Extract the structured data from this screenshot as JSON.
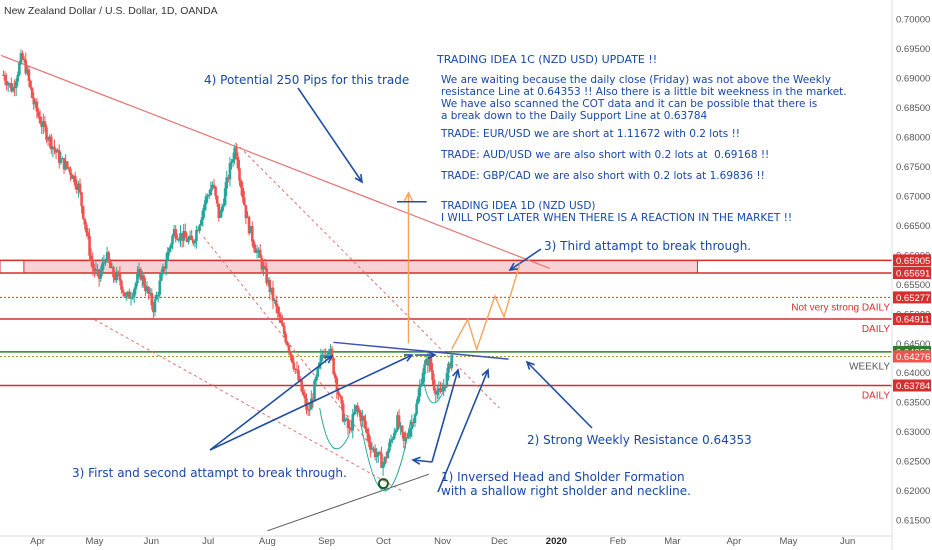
{
  "header": {
    "symbol_title": "New Zealand Dollar / U.S. Dollar, 1D, OANDA"
  },
  "notes": {
    "heading": "TRADING IDEA 1C (NZD USD) UPDATE !!",
    "para1": "We are waiting because the daily close (Friday) was not above the Weekly\nresistance Line at 0.64353 !! Also there is a little bit weekness in the market.\nWe have also scanned the COT data and it can be possible that there is\na break down to the Daily Support Line at 0.63784",
    "trade1": "TRADE: EUR/USD we are short at 1.11672 with 0.2 lots !!",
    "trade2": "TRADE: AUD/USD we are also short with 0.2 lots at  0.69168 !!",
    "trade3": "TRADE: GBP/CAD we are also short with 0.2 lots at 1.69836 !!",
    "idea2": "TRADING IDEA 1D (NZD USD)\nI WILL POST LATER WHEN THERE IS A REACTION IN THE MARKET !!"
  },
  "annotations": {
    "potential": "4) Potential 250 Pips for this trade",
    "third": "3) Third attampt to break through.",
    "first_second": "3) First and second attampt to break through.",
    "weekly_res": "2) Strong Weekly Resistance 0.64353",
    "hns": "1) Inversed Head and Sholder Formation\nwith a shallow right sholder and neckline."
  },
  "colors": {
    "candle_up": "#26a69a",
    "candle_down": "#ef5350",
    "line_red": "#d32f2f",
    "line_green": "#2e7d32",
    "arrow_blue": "#1f4fa0",
    "arrow_orange": "#f5a35c",
    "zone_fill": "#f6c9cc"
  },
  "chart_data": {
    "type": "candlestick",
    "title": "New Zealand Dollar / U.S. Dollar, 1D, OANDA",
    "ylim": [
      0.613,
      0.7015
    ],
    "y_ticks": [
      "0.70000",
      "0.69500",
      "0.69000",
      "0.68500",
      "0.68000",
      "0.67500",
      "0.67000",
      "0.66500",
      "0.66000",
      "0.65500",
      "0.65000",
      "0.64500",
      "0.64000",
      "0.63500",
      "0.63000",
      "0.62500",
      "0.62000",
      "0.61500"
    ],
    "x_ticks": [
      {
        "label": "Apr",
        "t": 0.5
      },
      {
        "label": "May",
        "t": 3.0
      },
      {
        "label": "Jun",
        "t": 5.5
      },
      {
        "label": "Jul",
        "t": 8.0
      },
      {
        "label": "Aug",
        "t": 10.6
      },
      {
        "label": "Sep",
        "t": 13.2
      },
      {
        "label": "Oct",
        "t": 15.7
      },
      {
        "label": "Nov",
        "t": 18.3
      },
      {
        "label": "Dec",
        "t": 20.8
      },
      {
        "label": "2020",
        "t": 23.3
      },
      {
        "label": "Feb",
        "t": 26.0
      },
      {
        "label": "Mar",
        "t": 28.4
      },
      {
        "label": "Apr",
        "t": 31.1
      },
      {
        "label": "May",
        "t": 33.5
      },
      {
        "label": "Jun",
        "t": 36.1
      }
    ],
    "x_range": [
      -1.15,
      38.05
    ],
    "price_path": [
      [
        -1.0,
        0.6905
      ],
      [
        -0.6,
        0.688
      ],
      [
        -0.2,
        0.6935
      ],
      [
        0.0,
        0.6915
      ],
      [
        0.3,
        0.686
      ],
      [
        0.7,
        0.682
      ],
      [
        1.1,
        0.679
      ],
      [
        1.5,
        0.676
      ],
      [
        1.9,
        0.6745
      ],
      [
        2.3,
        0.6715
      ],
      [
        2.6,
        0.665
      ],
      [
        2.9,
        0.658
      ],
      [
        3.2,
        0.656
      ],
      [
        3.5,
        0.66
      ],
      [
        3.8,
        0.6565
      ],
      [
        4.1,
        0.656
      ],
      [
        4.4,
        0.6525
      ],
      [
        4.7,
        0.654
      ],
      [
        5.0,
        0.657
      ],
      [
        5.3,
        0.654
      ],
      [
        5.6,
        0.651
      ],
      [
        5.9,
        0.6555
      ],
      [
        6.2,
        0.66
      ],
      [
        6.5,
        0.664
      ],
      [
        6.9,
        0.663
      ],
      [
        7.3,
        0.662
      ],
      [
        7.6,
        0.6655
      ],
      [
        7.9,
        0.6695
      ],
      [
        8.2,
        0.672
      ],
      [
        8.5,
        0.666
      ],
      [
        8.7,
        0.67
      ],
      [
        9.0,
        0.6755
      ],
      [
        9.2,
        0.6785
      ],
      [
        9.4,
        0.673
      ],
      [
        9.7,
        0.666
      ],
      [
        10.0,
        0.662
      ],
      [
        10.3,
        0.659
      ],
      [
        10.6,
        0.6555
      ],
      [
        10.9,
        0.652
      ],
      [
        11.2,
        0.648
      ],
      [
        11.5,
        0.645
      ],
      [
        11.8,
        0.641
      ],
      [
        12.1,
        0.637
      ],
      [
        12.4,
        0.633
      ],
      [
        12.7,
        0.638
      ],
      [
        13.0,
        0.643
      ],
      [
        13.3,
        0.6445
      ],
      [
        13.6,
        0.639
      ],
      [
        13.9,
        0.633
      ],
      [
        14.2,
        0.63
      ],
      [
        14.5,
        0.634
      ],
      [
        14.8,
        0.632
      ],
      [
        15.1,
        0.628
      ],
      [
        15.4,
        0.626
      ],
      [
        15.7,
        0.6245
      ],
      [
        16.0,
        0.628
      ],
      [
        16.3,
        0.632
      ],
      [
        16.6,
        0.628
      ],
      [
        16.9,
        0.631
      ],
      [
        17.2,
        0.635
      ],
      [
        17.4,
        0.64
      ],
      [
        17.7,
        0.6425
      ],
      [
        17.9,
        0.638
      ],
      [
        18.2,
        0.636
      ],
      [
        18.5,
        0.6395
      ],
      [
        18.7,
        0.643
      ]
    ],
    "horizontal_levels": [
      {
        "name": "0.65905",
        "value": 0.65905,
        "color": "#d32f2f",
        "label": ""
      },
      {
        "name": "0.65691",
        "value": 0.65691,
        "color": "#d32f2f",
        "label": ""
      },
      {
        "name": "0.65277",
        "value": 0.65277,
        "color": "#d32f2f",
        "label": "Not very strong DAILY"
      },
      {
        "name": "0.64911",
        "value": 0.64911,
        "color": "#d32f2f",
        "label": "DAILY"
      },
      {
        "name": "0.64353",
        "value": 0.64353,
        "color": "#2e7d32",
        "label": ""
      },
      {
        "name": "0.64276",
        "value": 0.64276,
        "color": "#9e9d24",
        "label": "WEEKLY"
      },
      {
        "name": "0.63784",
        "value": 0.63784,
        "color": "#d32f2f",
        "label": "DAILY"
      }
    ],
    "price_labels": [
      {
        "text": "0.65905",
        "value": 0.65905,
        "bg": "#d32f2f"
      },
      {
        "text": "0.65691",
        "value": 0.65691,
        "bg": "#d32f2f"
      },
      {
        "text": "0.65277",
        "value": 0.65277,
        "bg": "#d32f2f"
      },
      {
        "text": "0.64911",
        "value": 0.64911,
        "bg": "#d32f2f"
      },
      {
        "text": "0.64353",
        "value": 0.64353,
        "bg": "#2e7d32"
      },
      {
        "text": "0.64276",
        "value": 0.64276,
        "bg": "#ef5350"
      },
      {
        "text": "0.63784",
        "value": 0.63784,
        "bg": "#d32f2f"
      }
    ],
    "zone": {
      "from": 0.65691,
      "to": 0.65905,
      "t_start": -0.1,
      "t_end": 29.5
    },
    "grid": false
  }
}
